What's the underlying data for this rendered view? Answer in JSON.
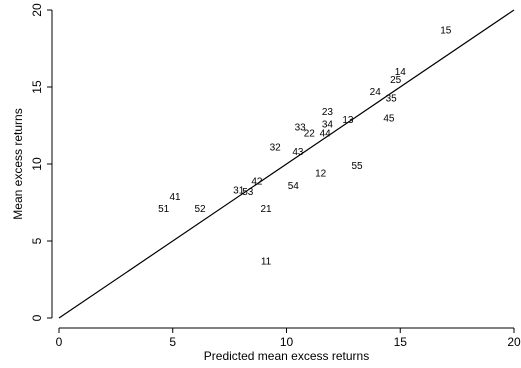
{
  "chart_data": {
    "type": "scatter",
    "title": "",
    "xlabel": "Predicted mean excess returns",
    "ylabel": "Mean excess returns",
    "xlim": [
      0,
      20
    ],
    "ylim": [
      0,
      20
    ],
    "xticks": [
      "0",
      "5",
      "10",
      "15",
      "20"
    ],
    "yticks": [
      "0",
      "5",
      "10",
      "15",
      "20"
    ],
    "reference_line": {
      "from": [
        0,
        0
      ],
      "to": [
        20,
        20
      ]
    },
    "grid": false,
    "points": [
      {
        "label": "15",
        "x": 17.0,
        "y": 18.7
      },
      {
        "label": "14",
        "x": 15.0,
        "y": 16.0
      },
      {
        "label": "25",
        "x": 14.8,
        "y": 15.5
      },
      {
        "label": "24",
        "x": 13.9,
        "y": 14.7
      },
      {
        "label": "35",
        "x": 14.6,
        "y": 14.3
      },
      {
        "label": "23",
        "x": 11.8,
        "y": 13.4
      },
      {
        "label": "45",
        "x": 14.5,
        "y": 13.0
      },
      {
        "label": "13",
        "x": 12.7,
        "y": 12.9
      },
      {
        "label": "34",
        "x": 11.8,
        "y": 12.6
      },
      {
        "label": "33",
        "x": 10.6,
        "y": 12.4
      },
      {
        "label": "22",
        "x": 11.0,
        "y": 12.0
      },
      {
        "label": "44",
        "x": 11.7,
        "y": 12.0
      },
      {
        "label": "32",
        "x": 9.5,
        "y": 11.1
      },
      {
        "label": "43",
        "x": 10.5,
        "y": 10.8
      },
      {
        "label": "55",
        "x": 13.1,
        "y": 9.9
      },
      {
        "label": "12",
        "x": 11.5,
        "y": 9.4
      },
      {
        "label": "42",
        "x": 8.7,
        "y": 8.9
      },
      {
        "label": "54",
        "x": 10.3,
        "y": 8.6
      },
      {
        "label": "31",
        "x": 7.9,
        "y": 8.3
      },
      {
        "label": "53",
        "x": 8.3,
        "y": 8.2
      },
      {
        "label": "41",
        "x": 5.1,
        "y": 7.9
      },
      {
        "label": "51",
        "x": 4.6,
        "y": 7.1
      },
      {
        "label": "52",
        "x": 6.2,
        "y": 7.1
      },
      {
        "label": "21",
        "x": 9.1,
        "y": 7.1
      },
      {
        "label": "11",
        "x": 9.1,
        "y": 3.7
      }
    ]
  }
}
